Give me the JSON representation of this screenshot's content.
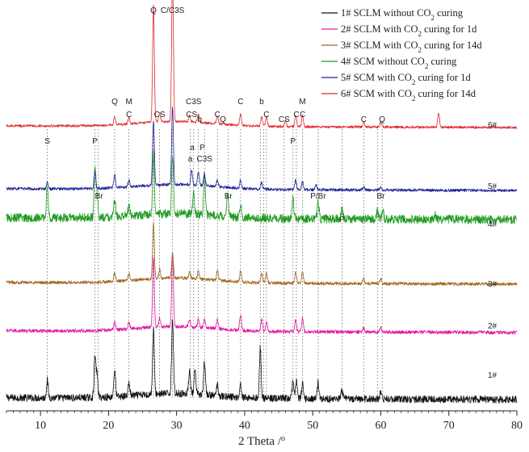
{
  "chart_data": {
    "type": "line",
    "title": "",
    "xlabel": "2 Theta /",
    "xlabel_sup": "o",
    "ylabel": "",
    "xlim": [
      5,
      80
    ],
    "xticks": [
      10,
      20,
      30,
      40,
      50,
      60,
      70,
      80
    ],
    "y_axis_shown": false,
    "grid": false,
    "legend_position": "top-right",
    "series": [
      {
        "name_parts": [
          "1# SCLM without CO",
          "2",
          " curing"
        ],
        "pattern_label": "1#",
        "color": "#111111",
        "peaks": [
          [
            11.0,
            22
          ],
          [
            18.0,
            50
          ],
          [
            18.3,
            28
          ],
          [
            20.9,
            34
          ],
          [
            23.0,
            16
          ],
          [
            26.6,
            80
          ],
          [
            29.4,
            95
          ],
          [
            31.9,
            30
          ],
          [
            32.7,
            28
          ],
          [
            34.1,
            40
          ],
          [
            36.0,
            14
          ],
          [
            39.4,
            16
          ],
          [
            42.3,
            62
          ],
          [
            47.1,
            22
          ],
          [
            47.6,
            24
          ],
          [
            48.5,
            18
          ],
          [
            50.8,
            20
          ],
          [
            54.3,
            10
          ],
          [
            60.0,
            8
          ]
        ],
        "noise": 4.5
      },
      {
        "name_parts": [
          "2# SCLM with CO",
          "2",
          " curing for 1d"
        ],
        "pattern_label": "2#",
        "color": "#e01aa5",
        "peaks": [
          [
            20.9,
            10
          ],
          [
            23.0,
            8
          ],
          [
            26.6,
            88
          ],
          [
            27.5,
            12
          ],
          [
            29.4,
            92
          ],
          [
            31.9,
            10
          ],
          [
            33.2,
            10
          ],
          [
            34.1,
            10
          ],
          [
            36.0,
            12
          ],
          [
            39.4,
            20
          ],
          [
            42.5,
            14
          ],
          [
            43.2,
            12
          ],
          [
            47.5,
            14
          ],
          [
            48.5,
            18
          ],
          [
            57.5,
            6
          ],
          [
            60.0,
            6
          ]
        ],
        "noise": 2.2
      },
      {
        "name_parts": [
          "3# SCLM with CO",
          "2",
          " curing for 14d"
        ],
        "pattern_label": "3#",
        "color": "#a0641e",
        "peaks": [
          [
            20.9,
            10
          ],
          [
            23.0,
            8
          ],
          [
            26.6,
            70
          ],
          [
            27.5,
            12
          ],
          [
            29.4,
            30
          ],
          [
            31.9,
            8
          ],
          [
            33.2,
            10
          ],
          [
            36.0,
            12
          ],
          [
            39.4,
            14
          ],
          [
            42.5,
            12
          ],
          [
            43.2,
            12
          ],
          [
            47.5,
            14
          ],
          [
            48.5,
            14
          ],
          [
            57.5,
            6
          ],
          [
            60.0,
            6
          ]
        ],
        "noise": 2.0
      },
      {
        "name_parts": [
          "4# SCM without CO",
          "2",
          " curing"
        ],
        "pattern_label": "4#",
        "color": "#1f9a1f",
        "peaks": [
          [
            11.0,
            40
          ],
          [
            18.0,
            58
          ],
          [
            18.3,
            30
          ],
          [
            20.9,
            20
          ],
          [
            23.0,
            14
          ],
          [
            26.6,
            75
          ],
          [
            29.4,
            72
          ],
          [
            32.5,
            26
          ],
          [
            34.1,
            52
          ],
          [
            37.5,
            28
          ],
          [
            39.4,
            16
          ],
          [
            47.1,
            26
          ],
          [
            50.8,
            22
          ],
          [
            54.3,
            12
          ],
          [
            59.5,
            10
          ],
          [
            60.3,
            10
          ],
          [
            68.0,
            6
          ]
        ],
        "noise": 5.5
      },
      {
        "name_parts": [
          "5# SCM with CO",
          "2",
          " curing for 1d"
        ],
        "pattern_label": "5#",
        "color": "#1e1e96",
        "peaks": [
          [
            11.0,
            8
          ],
          [
            18.0,
            22
          ],
          [
            20.9,
            16
          ],
          [
            23.0,
            8
          ],
          [
            26.6,
            80
          ],
          [
            29.4,
            95
          ],
          [
            32.2,
            18
          ],
          [
            33.2,
            16
          ],
          [
            34.1,
            14
          ],
          [
            36.0,
            8
          ],
          [
            39.4,
            10
          ],
          [
            42.5,
            8
          ],
          [
            47.5,
            12
          ],
          [
            48.5,
            10
          ],
          [
            50.5,
            6
          ],
          [
            57.5,
            4
          ],
          [
            60.0,
            4
          ]
        ],
        "noise": 1.8
      },
      {
        "name_parts": [
          "6# SCM with CO",
          "2",
          " curing for 14d"
        ],
        "pattern_label": "6#",
        "color": "#e0262a",
        "peaks": [
          [
            20.9,
            10
          ],
          [
            23.0,
            8
          ],
          [
            26.6,
            145
          ],
          [
            27.5,
            12
          ],
          [
            29.4,
            180
          ],
          [
            31.9,
            8
          ],
          [
            33.2,
            10
          ],
          [
            36.0,
            10
          ],
          [
            39.4,
            14
          ],
          [
            42.5,
            12
          ],
          [
            43.2,
            12
          ],
          [
            46.0,
            8
          ],
          [
            47.5,
            14
          ],
          [
            48.5,
            14
          ],
          [
            57.5,
            6
          ],
          [
            60.0,
            6
          ],
          [
            68.5,
            18
          ]
        ],
        "noise": 1.5
      }
    ],
    "reference_lines_2theta": [
      11.0,
      18.0,
      18.5,
      20.9,
      23.0,
      26.6,
      27.5,
      29.4,
      32.0,
      32.5,
      33.2,
      34.1,
      36.0,
      37.6,
      39.4,
      42.3,
      42.8,
      43.2,
      45.8,
      47.1,
      47.6,
      48.5,
      50.8,
      54.3,
      57.5,
      59.5,
      60.2
    ],
    "peak_labels": [
      {
        "text": "Q",
        "theta": 26.6,
        "row": 0
      },
      {
        "text": "C/C3S",
        "theta": 29.4,
        "row": 0
      },
      {
        "text": "Q",
        "theta": 20.9,
        "row": 1
      },
      {
        "text": "M",
        "theta": 23.0,
        "row": 1
      },
      {
        "text": "C",
        "theta": 23.0,
        "row": 2
      },
      {
        "text": "CS",
        "theta": 27.5,
        "row": 2
      },
      {
        "text": "C3S",
        "theta": 32.5,
        "row": 1
      },
      {
        "text": "CS",
        "theta": 32.2,
        "row": 2
      },
      {
        "text": "b",
        "theta": 33.4,
        "row": 3
      },
      {
        "text": "C",
        "theta": 36.0,
        "row": 2
      },
      {
        "text": "Q",
        "theta": 36.8,
        "row": 3
      },
      {
        "text": "C",
        "theta": 39.4,
        "row": 1
      },
      {
        "text": "b",
        "theta": 42.5,
        "row": 1
      },
      {
        "text": "C",
        "theta": 43.2,
        "row": 2
      },
      {
        "text": "CS",
        "theta": 45.8,
        "row": 3
      },
      {
        "text": "C",
        "theta": 47.6,
        "row": 2
      },
      {
        "text": "M",
        "theta": 48.5,
        "row": 1
      },
      {
        "text": "C",
        "theta": 48.5,
        "row": 2
      },
      {
        "text": "C",
        "theta": 57.5,
        "row": 3
      },
      {
        "text": "Q",
        "theta": 60.2,
        "row": 3
      },
      {
        "text": "S",
        "theta": 11.0,
        "row": 4
      },
      {
        "text": "P",
        "theta": 18.0,
        "row": 4
      },
      {
        "text": "a",
        "theta": 32.3,
        "row": 5
      },
      {
        "text": "P",
        "theta": 33.8,
        "row": 5
      },
      {
        "text": "a",
        "theta": 32.0,
        "row": 6
      },
      {
        "text": "C3S",
        "theta": 34.1,
        "row": 6
      },
      {
        "text": "P",
        "theta": 47.1,
        "row": 4
      },
      {
        "text": "Br",
        "theta": 18.6,
        "row": 7
      },
      {
        "text": "Br",
        "theta": 37.6,
        "row": 7
      },
      {
        "text": "P/Br",
        "theta": 50.8,
        "row": 7
      },
      {
        "text": "P",
        "theta": 54.3,
        "row": 8
      },
      {
        "text": "Br",
        "theta": 60.0,
        "row": 7
      }
    ]
  }
}
